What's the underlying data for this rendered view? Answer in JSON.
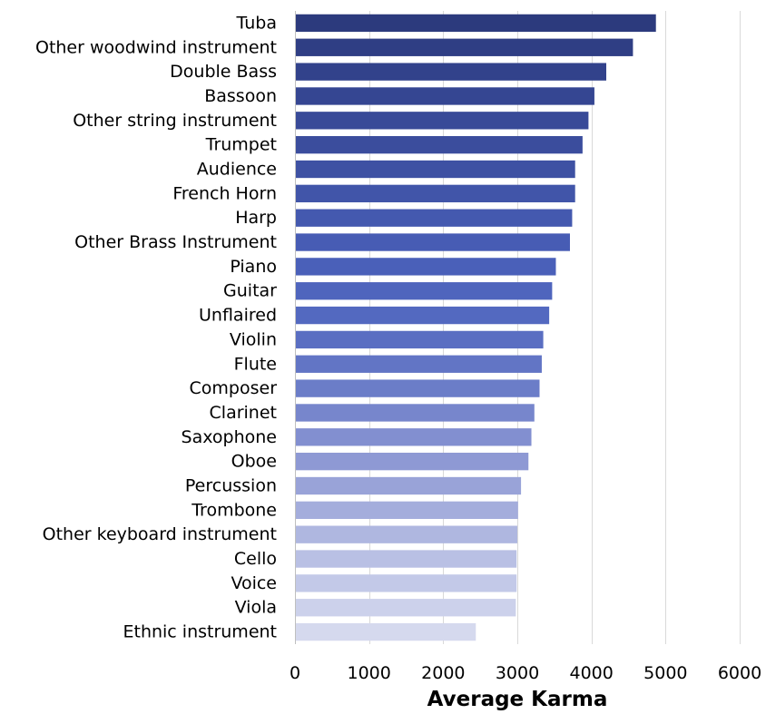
{
  "chart_data": {
    "type": "bar",
    "orientation": "horizontal",
    "categories": [
      "Tuba",
      "Other woodwind instrument",
      "Double Bass",
      "Bassoon",
      "Other string instrument",
      "Trumpet ",
      "Audience",
      "French Horn",
      "Harp",
      "Other Brass Instrument",
      "Piano",
      "Guitar",
      "Unflaired",
      "Violin",
      "Flute",
      "Composer",
      "Clarinet",
      "Saxophone",
      "Oboe",
      "Percussion",
      "Trombone",
      "Other keyboard instrument",
      "Cello",
      "Voice",
      "Viola",
      "Ethnic instrument"
    ],
    "values": [
      4870,
      4560,
      4200,
      4040,
      3960,
      3880,
      3780,
      3780,
      3740,
      3710,
      3520,
      3470,
      3430,
      3350,
      3330,
      3300,
      3230,
      3190,
      3150,
      3050,
      3010,
      3000,
      2990,
      2990,
      2980,
      2440
    ],
    "colors": [
      "#2c3a7d",
      "#2f3e84",
      "#32428b",
      "#354692",
      "#384a98",
      "#3b4d9d",
      "#3e51a3",
      "#4155a9",
      "#4459af",
      "#475cb4",
      "#4a60b9",
      "#4f65bd",
      "#5369c0",
      "#5a6ec2",
      "#6275c5",
      "#6b7dc8",
      "#7786cc",
      "#828fd0",
      "#8e99d4",
      "#99a3d8",
      "#a4addc",
      "#afb7e0",
      "#b9c0e4",
      "#c3c9e8",
      "#ccd1eb",
      "#d5d9ee"
    ],
    "xlabel": "Average Karma",
    "ylabel": "",
    "xlim": [
      0,
      6000
    ],
    "xticks": [
      0,
      1000,
      2000,
      3000,
      4000,
      5000,
      6000
    ],
    "grid": true
  }
}
